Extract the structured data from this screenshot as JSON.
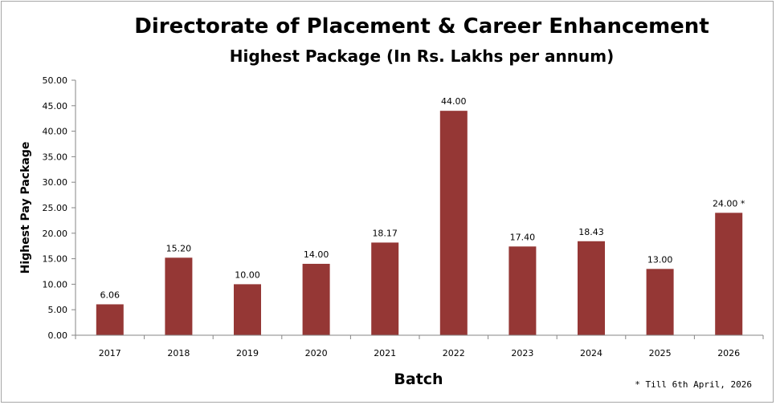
{
  "chart_data": {
    "type": "bar",
    "title": "Directorate of Placement & Career Enhancement",
    "subtitle": "Highest Package (In Rs. Lakhs per annum)",
    "xlabel": "Batch",
    "ylabel": "Highest Pay Package",
    "categories": [
      "2017",
      "2018",
      "2019",
      "2020",
      "2021",
      "2022",
      "2023",
      "2024",
      "2025",
      "2026"
    ],
    "values": [
      6.06,
      15.2,
      10.0,
      14.0,
      18.17,
      44.0,
      17.4,
      18.43,
      13.0,
      24.0
    ],
    "data_labels": [
      "6.06",
      "15.20",
      "10.00",
      "14.00",
      "18.17",
      "44.00",
      "17.40",
      "18.43",
      "13.00",
      "24.00 *"
    ],
    "ylim": [
      0,
      50
    ],
    "y_ticks": [
      "0.00",
      "5.00",
      "10.00",
      "15.00",
      "20.00",
      "25.00",
      "30.00",
      "35.00",
      "40.00",
      "45.00",
      "50.00"
    ],
    "grid": false,
    "legend": "none",
    "bar_color": "#953735",
    "footnote": "* Till 6th April, 2026"
  }
}
